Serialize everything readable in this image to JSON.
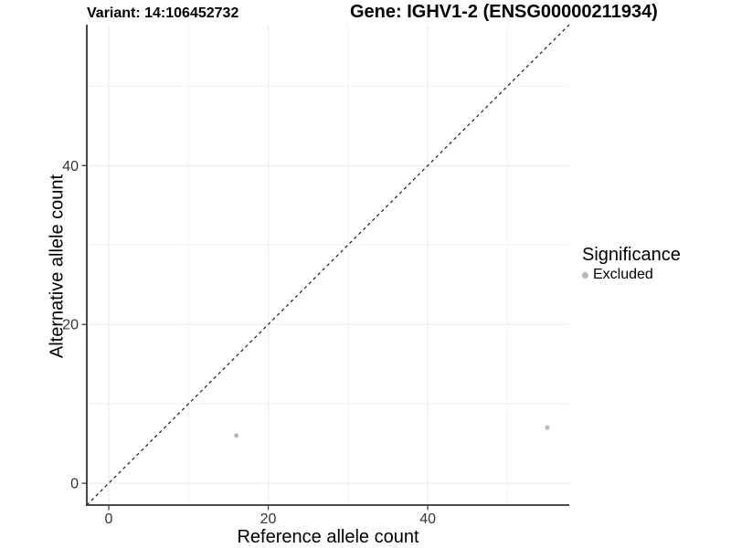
{
  "header": {
    "variant_title": "Variant: 14:106452732",
    "gene_title": "Gene: IGHV1-2 (ENSG00000211934)"
  },
  "chart_data": {
    "type": "scatter",
    "title": "",
    "xlabel": "Reference allele count",
    "ylabel": "Alternative allele count",
    "xlim": [
      -2.75,
      57.75
    ],
    "ylim": [
      -2.75,
      57.75
    ],
    "x_ticks": [
      0,
      20,
      40
    ],
    "y_ticks": [
      0,
      20,
      40
    ],
    "x_minor_gridlines": [
      10,
      30,
      50
    ],
    "y_minor_gridlines": [
      10,
      30,
      50
    ],
    "grid": true,
    "identity_line": {
      "slope": 1,
      "intercept": 0,
      "linetype": "dashed"
    },
    "series": [
      {
        "name": "Excluded",
        "points": [
          {
            "x": 16,
            "y": 6
          },
          {
            "x": 55,
            "y": 7
          }
        ]
      }
    ],
    "legend": {
      "title": "Significance",
      "position": "right",
      "items": [
        {
          "label": "Excluded",
          "color": "#b8b8b8"
        }
      ]
    }
  },
  "colors": {
    "background": "#ffffff",
    "gridline_major": "#e9e9e9",
    "gridline_minor": "#f2f2f2",
    "axis_line": "#333333",
    "tick_mark": "#333333",
    "tick_text": "#333333",
    "title_text": "#000000",
    "identity_line": "#1a1a1a",
    "point_excluded": "#b8b8b8"
  }
}
